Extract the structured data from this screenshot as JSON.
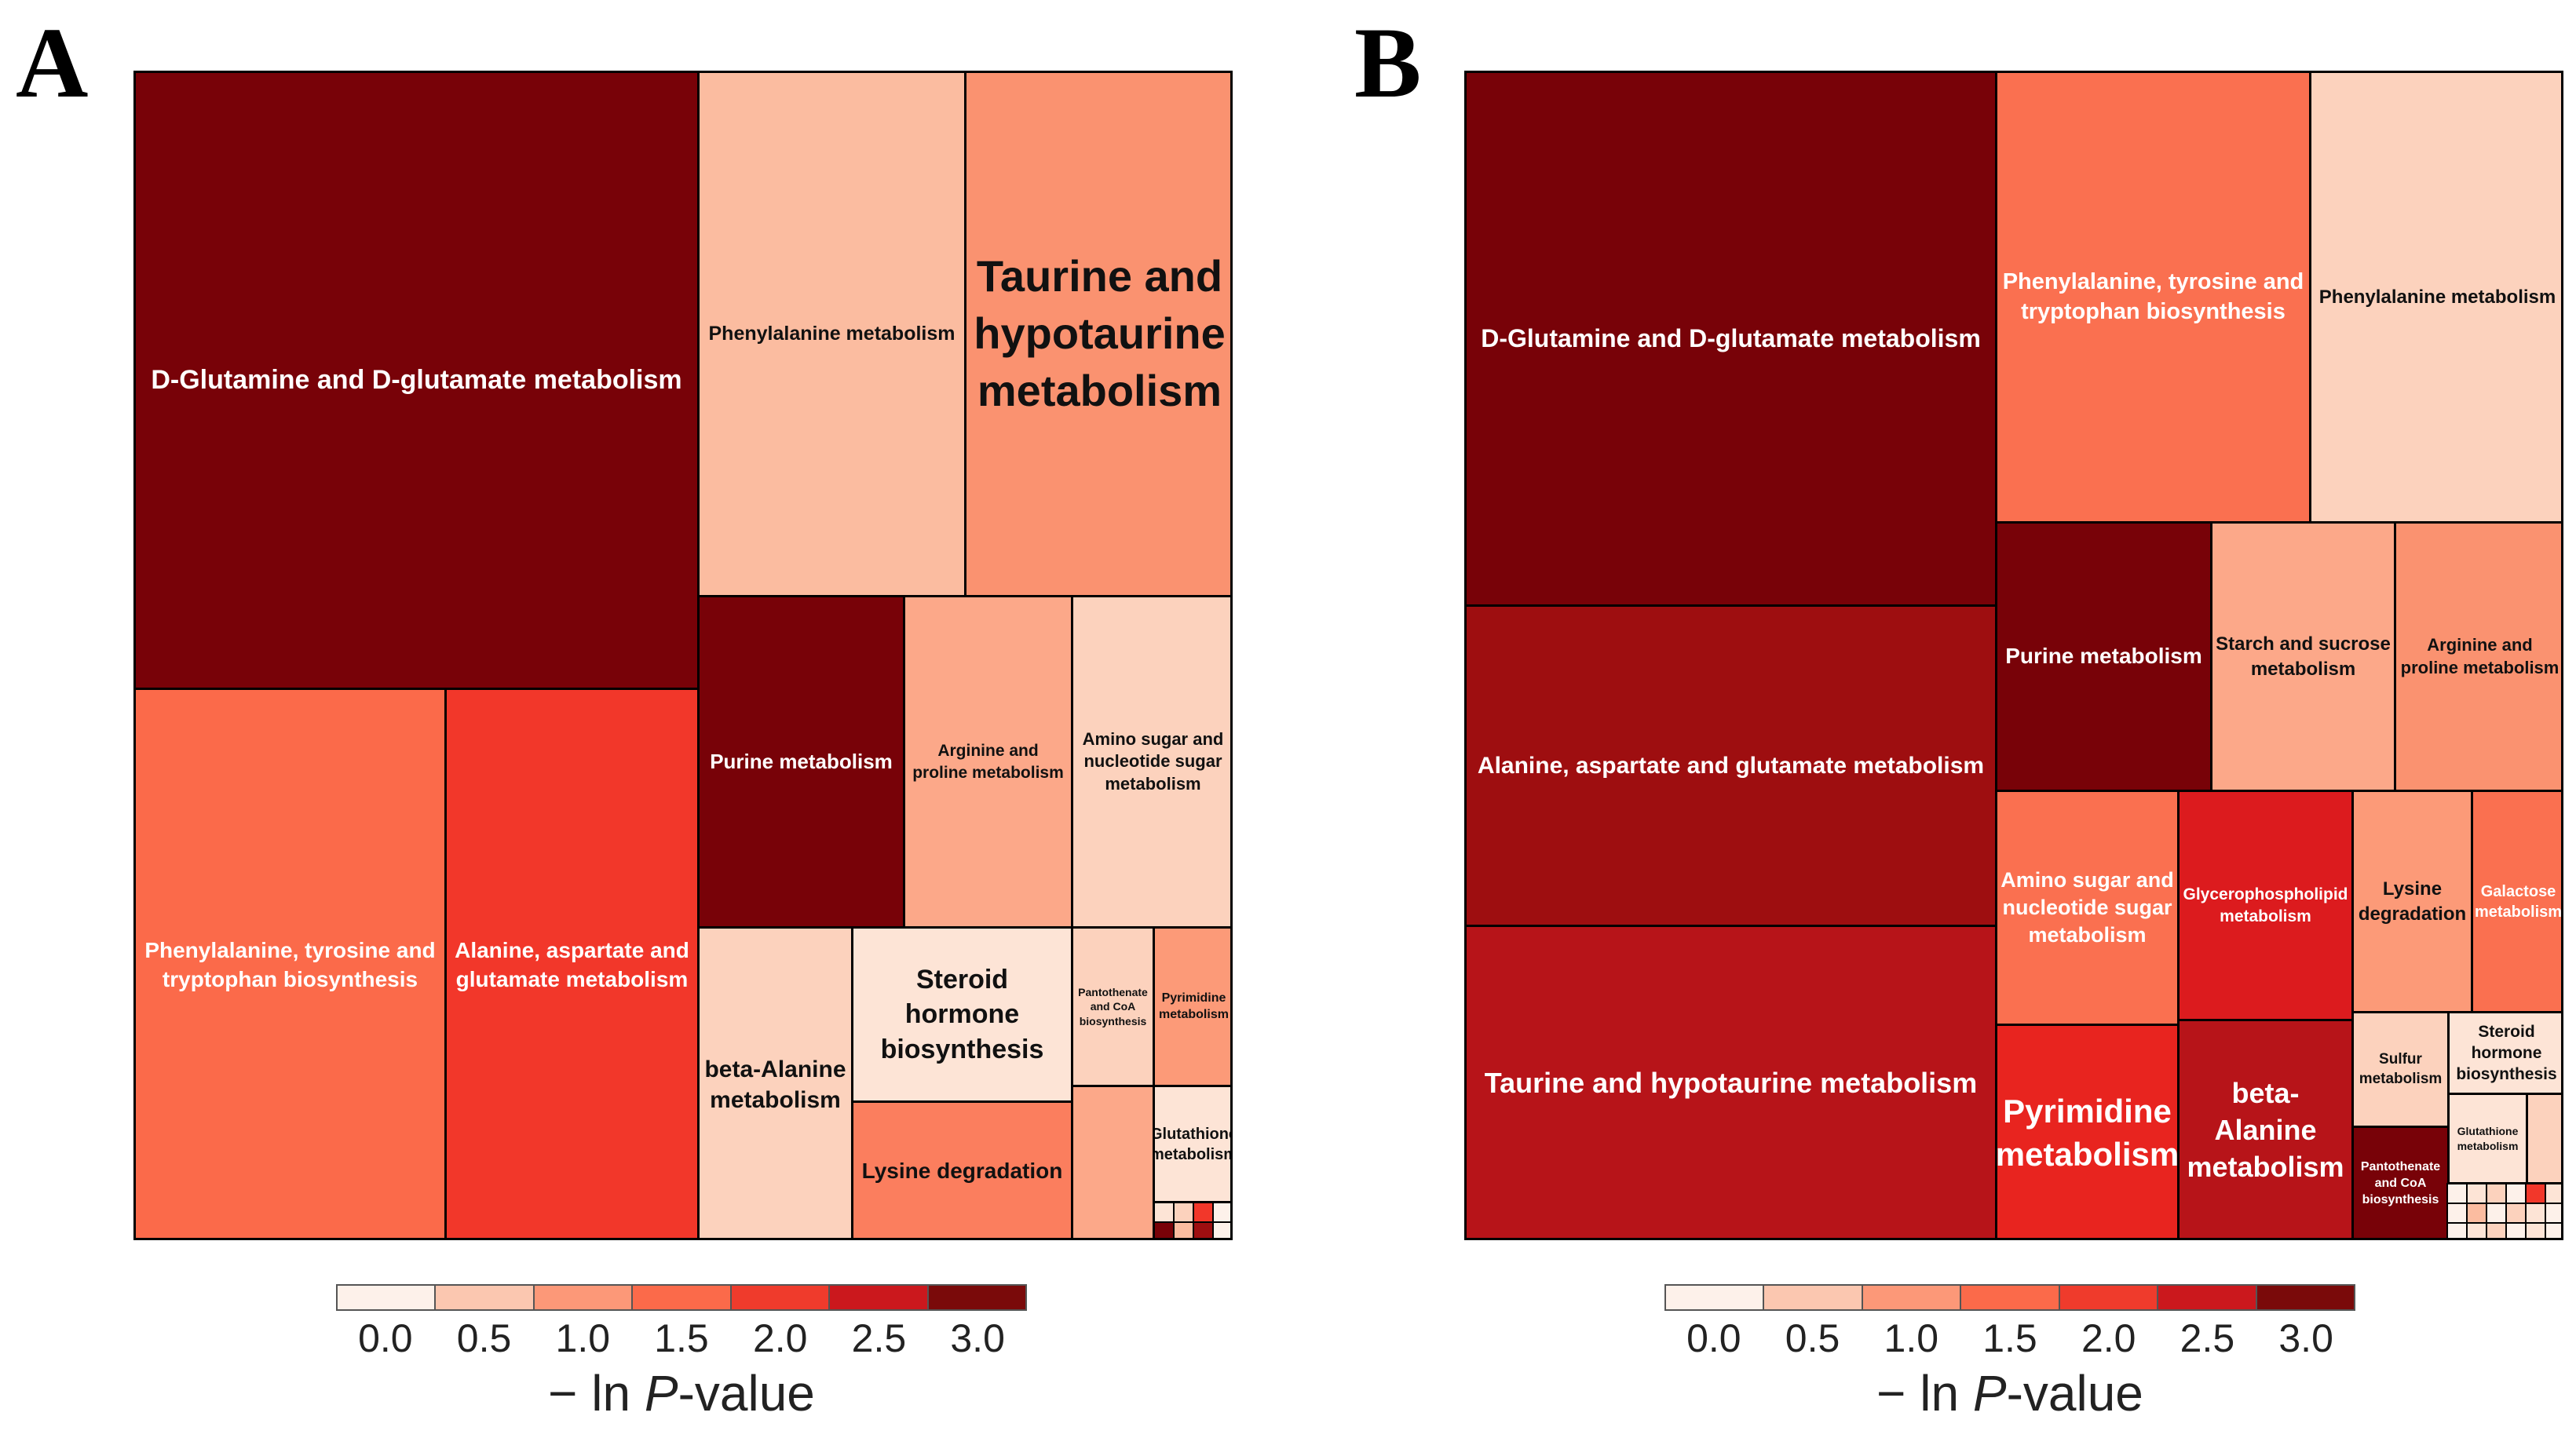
{
  "chart_data": [
    {
      "type": "treemap",
      "panel": "A",
      "value_label": "− ln P-value",
      "tiles": [
        {
          "label": "D-Glutamine and D-glutamate metabolism",
          "value": 3.0
        },
        {
          "label": "Phenylalanine, tyrosine and tryptophan biosynthesis",
          "value": 1.5
        },
        {
          "label": "Alanine, aspartate and glutamate metabolism",
          "value": 2.0
        },
        {
          "label": "Phenylalanine metabolism",
          "value": 0.7
        },
        {
          "label": "Taurine and hypotaurine metabolism",
          "value": 1.1
        },
        {
          "label": "Purine metabolism",
          "value": 3.0
        },
        {
          "label": "Arginine and proline metabolism",
          "value": 0.9
        },
        {
          "label": "Amino sugar and nucleotide sugar metabolism",
          "value": 0.5
        },
        {
          "label": "beta-Alanine metabolism",
          "value": 0.5
        },
        {
          "label": "Steroid hormone biosynthesis",
          "value": 0.2
        },
        {
          "label": "Lysine degradation",
          "value": 1.3
        },
        {
          "label": "Pantothenate and CoA biosynthesis",
          "value": 0.5
        },
        {
          "label": "Pyrimidine metabolism",
          "value": 1.0
        },
        {
          "label": "Glutathione metabolism",
          "value": 0.2
        },
        {
          "label": "",
          "value": 0.9
        }
      ]
    },
    {
      "type": "treemap",
      "panel": "B",
      "value_label": "− ln P-value",
      "tiles": [
        {
          "label": "D-Glutamine and D-glutamate metabolism",
          "value": 3.0
        },
        {
          "label": "Alanine, aspartate and glutamate metabolism",
          "value": 2.8
        },
        {
          "label": "Taurine and hypotaurine metabolism",
          "value": 2.6
        },
        {
          "label": "Phenylalanine, tyrosine and tryptophan biosynthesis",
          "value": 1.4
        },
        {
          "label": "Phenylalanine metabolism",
          "value": 0.6
        },
        {
          "label": "Purine metabolism",
          "value": 3.0
        },
        {
          "label": "Starch and sucrose metabolism",
          "value": 0.9
        },
        {
          "label": "Arginine and proline metabolism",
          "value": 1.1
        },
        {
          "label": "Amino sugar and nucleotide sugar metabolism",
          "value": 1.4
        },
        {
          "label": "Glycerophospholipid metabolism",
          "value": 2.3
        },
        {
          "label": "Lysine degradation",
          "value": 1.0
        },
        {
          "label": "Galactose metabolism",
          "value": 1.4
        },
        {
          "label": "Pyrimidine metabolism",
          "value": 2.2
        },
        {
          "label": "beta-Alanine metabolism",
          "value": 2.6
        },
        {
          "label": "Sulfur metabolism",
          "value": 0.6
        },
        {
          "label": "Steroid hormone biosynthesis",
          "value": 0.2
        },
        {
          "label": "Pantothenate and CoA biosynthesis",
          "value": 3.0
        },
        {
          "label": "Glutathione metabolism",
          "value": 0.2
        },
        {
          "label": "",
          "value": 0.5
        }
      ]
    }
  ],
  "legend": {
    "ticks": [
      "0.0",
      "0.5",
      "1.0",
      "1.5",
      "2.0",
      "2.5",
      "3.0"
    ],
    "colors": [
      "#fdf1ea",
      "#fbc7b0",
      "#fc9878",
      "#fb6a4a",
      "#ef3b2c",
      "#cb181d",
      "#7a0a0a"
    ],
    "title_prefix": "− ln ",
    "title_italic": "P",
    "title_suffix": "-value"
  },
  "panel_labels": {
    "a": "A",
    "b": "B"
  },
  "palette": {
    "c00": "#fdf1ea",
    "c02": "#fde4d6",
    "c05": "#fcd2bd",
    "c07": "#fbbca0",
    "c09": "#fca889",
    "c10": "#fc9a78",
    "c11": "#fa9270",
    "c13": "#fb7e5e",
    "c14": "#fa7050",
    "c15": "#fb6a4a",
    "c20": "#f2372a",
    "c22": "#e8241f",
    "c23": "#dc1b1e",
    "c26": "#b71419",
    "c28": "#9e0e10",
    "c30": "#780208"
  }
}
